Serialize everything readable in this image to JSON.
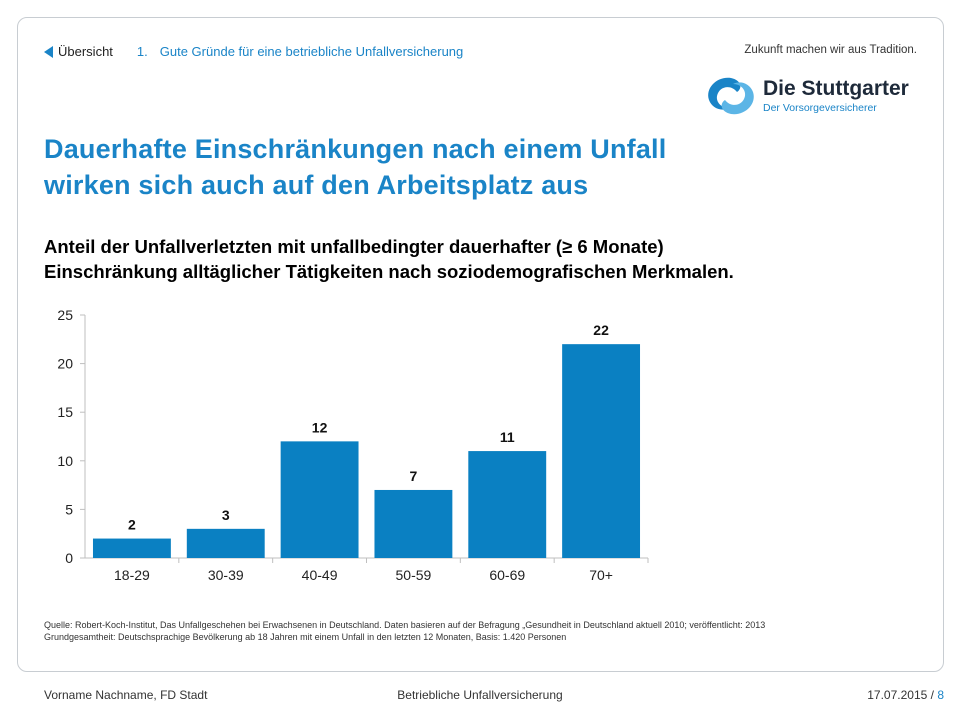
{
  "nav": {
    "back_label": "Übersicht",
    "section_number": "1.",
    "section_title": "Gute Gründe für eine betriebliche Unfallversicherung"
  },
  "brand": {
    "tagline": "Zukunft machen wir aus Tradition.",
    "name": "Die Stuttgarter",
    "sub": "Der Vorsorgeversicherer",
    "logo_icon": "stuttgarter-logo-icon",
    "accent_color": "#1a84c7",
    "bar_color": "#0a80c2"
  },
  "slide": {
    "title_line1": "Dauerhafte Einschränkungen nach einem Unfall",
    "title_line2": "wirken sich auch auf den Arbeitsplatz aus",
    "subtitle_line1": "Anteil der Unfallverletzten mit unfallbedingter dauerhafter (≥ 6 Monate)",
    "subtitle_line2": "Einschränkung alltäglicher Tätigkeiten nach soziodemografischen Merkmalen."
  },
  "chart_data": {
    "type": "bar",
    "categories": [
      "18-29",
      "30-39",
      "40-49",
      "50-59",
      "60-69",
      "70+"
    ],
    "values": [
      2,
      3,
      12,
      7,
      11,
      22
    ],
    "ylim": [
      0,
      25
    ],
    "yticks": [
      0,
      5,
      10,
      15,
      20,
      25
    ],
    "grid": false,
    "data_labels": true
  },
  "source": {
    "line1": "Quelle: Robert-Koch-Institut, Das Unfallgeschehen bei Erwachsenen in Deutschland. Daten basieren auf der Befragung „Gesundheit in Deutschland aktuell 2010; veröffentlicht: 2013",
    "line2": "Grundgesamtheit: Deutschsprachige Bevölkerung ab 18 Jahren mit einem Unfall in den letzten 12 Monaten, Basis: 1.420 Personen"
  },
  "footer": {
    "author": "Vorname Nachname, FD Stadt",
    "topic": "Betriebliche Unfallversicherung",
    "date": "17.07.2015 /",
    "page": "8"
  }
}
